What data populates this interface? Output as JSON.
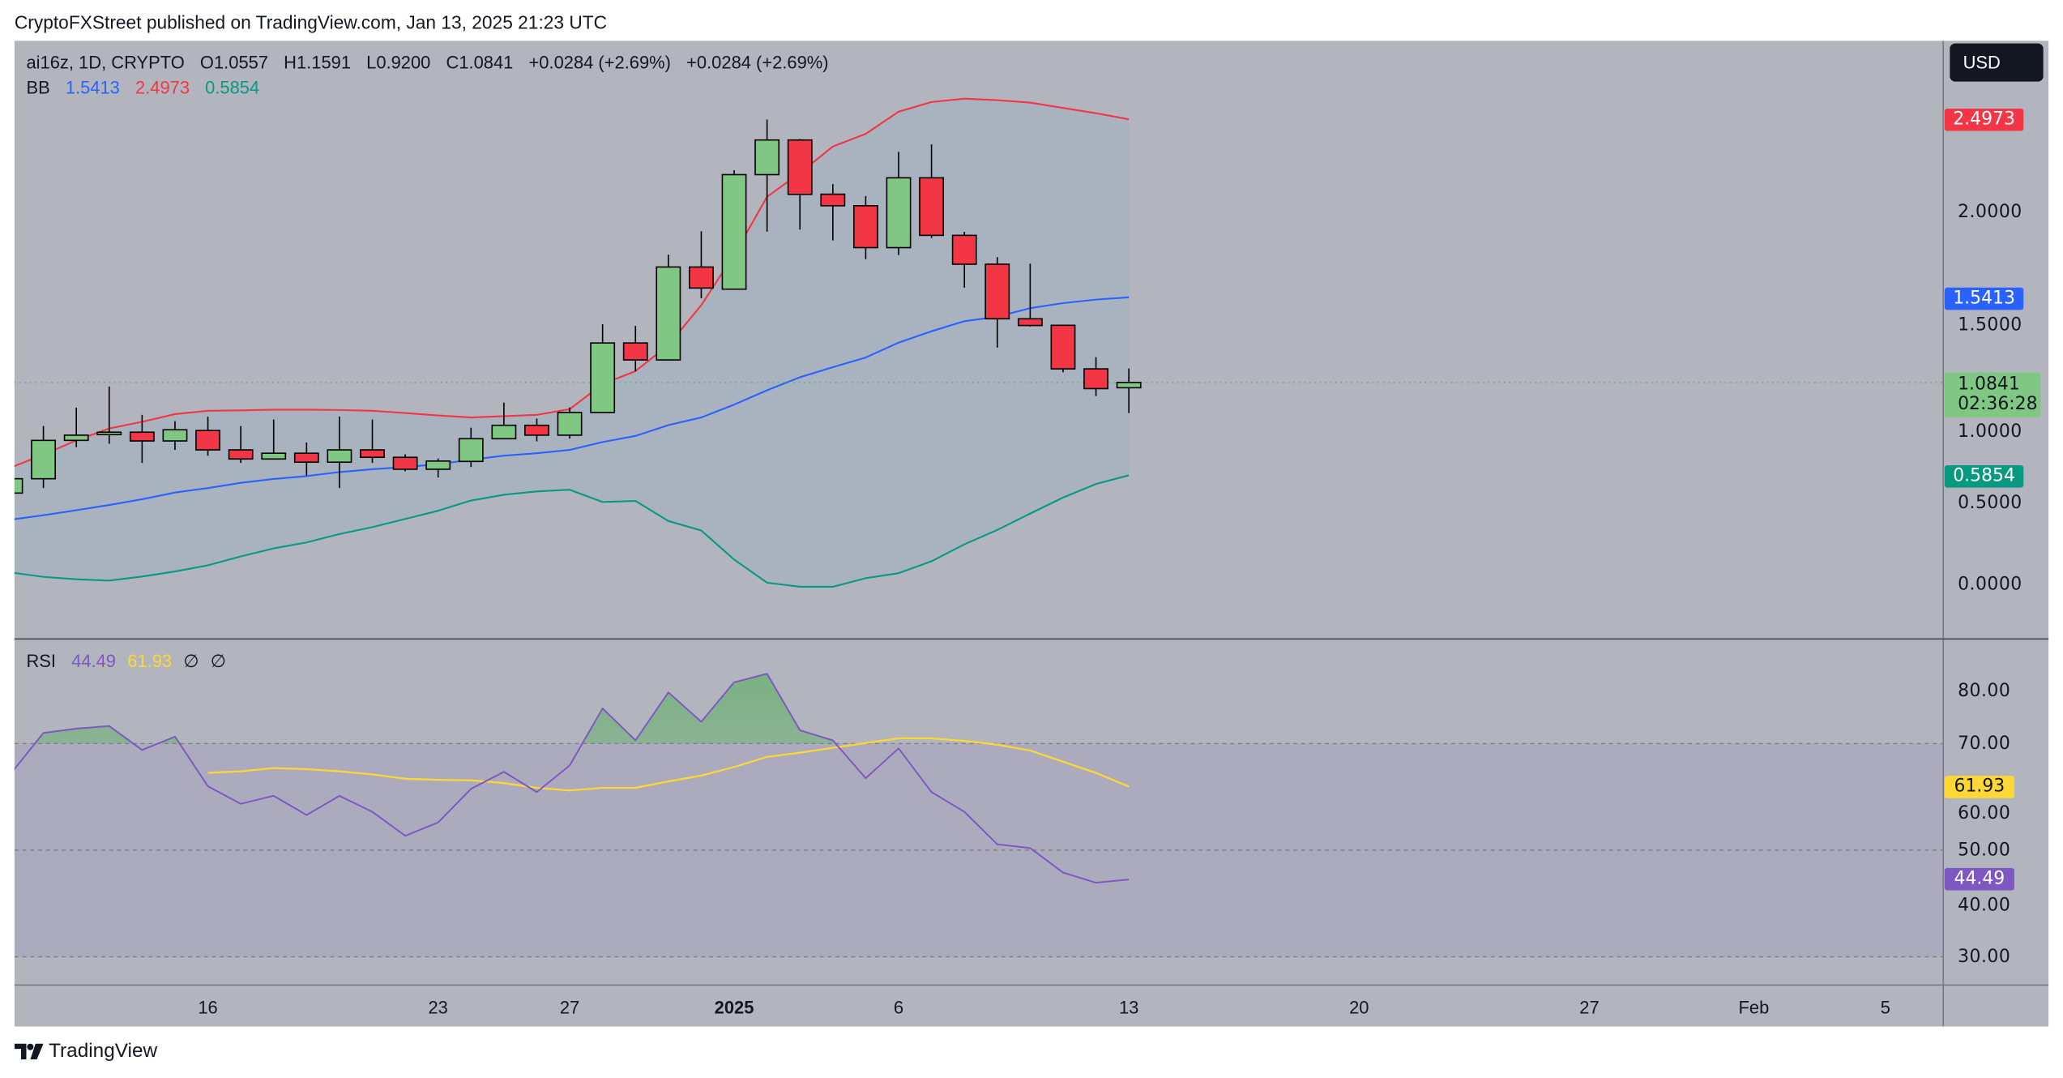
{
  "published": "CryptoFXStreet published on TradingView.com, Jan 13, 2025 21:23 UTC",
  "legend": {
    "symbol": "ai16z, 1D, CRYPTO",
    "open": "O1.0557",
    "high": "H1.1591",
    "low": "L0.9200",
    "close": "C1.0841",
    "change1": "+0.0284 (+2.69%)",
    "change2": "+0.0284 (+2.69%)",
    "bb_label": "BB",
    "bb_basis": "1.5413",
    "bb_upper": "2.4973",
    "bb_lower": "0.5854"
  },
  "rsi_legend": {
    "label": "RSI",
    "rsi": "44.49",
    "ma": "61.93",
    "sym1": "∅",
    "sym2": "∅"
  },
  "currency_button": "USD",
  "price_labels": {
    "upper": "2.4973",
    "basis": "1.5413",
    "current": "1.0841",
    "countdown": "02:36:28",
    "lower": "0.5854",
    "rsi_ma": "61.93",
    "rsi": "44.49"
  },
  "footer_brand": "TradingView",
  "colors": {
    "up": "#81c784",
    "down": "#f23645",
    "bb_upper": "#f23645",
    "bb_basis": "#2962ff",
    "bb_lower": "#089981",
    "rsi": "#7e57c2",
    "rsi_ma": "#fdd835",
    "background": "#b2b5be"
  },
  "chart_data": [
    {
      "type": "candlestick",
      "title": "ai16z, 1D, CRYPTO",
      "ylabel": "USD",
      "ylim": [
        -0.3,
        2.9
      ],
      "yticks": [
        "2.0000",
        "1.5000",
        "1.0000",
        "0.5000",
        "0.0000"
      ],
      "ytick_values": [
        2.0,
        1.5,
        1.0,
        0.5,
        0.0
      ],
      "xticks": [
        {
          "label": "16",
          "date": "Dec 16",
          "bold": false
        },
        {
          "label": "23",
          "date": "Dec 23",
          "bold": false
        },
        {
          "label": "27",
          "date": "Dec 27",
          "bold": false
        },
        {
          "label": "2025",
          "date": "Jan 1",
          "bold": true
        },
        {
          "label": "6",
          "date": "Jan 6",
          "bold": false
        },
        {
          "label": "13",
          "date": "Jan 13",
          "bold": false
        },
        {
          "label": "20",
          "date": "Jan 20",
          "bold": false
        },
        {
          "label": "27",
          "date": "Jan 27",
          "bold": false
        },
        {
          "label": "Feb",
          "date": "Feb 1",
          "bold": false
        },
        {
          "label": "5",
          "date": "Feb 5",
          "bold": false
        }
      ],
      "dates": [
        "Dec 10",
        "Dec 11",
        "Dec 12",
        "Dec 13",
        "Dec 14",
        "Dec 15",
        "Dec 16",
        "Dec 17",
        "Dec 18",
        "Dec 19",
        "Dec 20",
        "Dec 21",
        "Dec 22",
        "Dec 23",
        "Dec 24",
        "Dec 25",
        "Dec 26",
        "Dec 27",
        "Dec 28",
        "Dec 29",
        "Dec 30",
        "Dec 31",
        "Jan 1",
        "Jan 2",
        "Jan 3",
        "Jan 4",
        "Jan 5",
        "Jan 6",
        "Jan 7",
        "Jan 8",
        "Jan 9",
        "Jan 10",
        "Jan 11",
        "Jan 12",
        "Jan 13"
      ],
      "ohlc": [
        [
          0.49,
          0.58,
          0.47,
          0.567
        ],
        [
          0.567,
          0.85,
          0.517,
          0.773
        ],
        [
          0.773,
          0.949,
          0.737,
          0.801
        ],
        [
          0.804,
          1.062,
          0.755,
          0.817
        ],
        [
          0.817,
          0.91,
          0.652,
          0.77
        ],
        [
          0.77,
          0.876,
          0.722,
          0.83
        ],
        [
          0.826,
          0.901,
          0.691,
          0.722
        ],
        [
          0.722,
          0.85,
          0.652,
          0.673
        ],
        [
          0.673,
          0.885,
          0.673,
          0.704
        ],
        [
          0.704,
          0.762,
          0.585,
          0.656
        ],
        [
          0.656,
          0.901,
          0.517,
          0.722
        ],
        [
          0.722,
          0.885,
          0.652,
          0.682
        ],
        [
          0.682,
          0.698,
          0.607,
          0.618
        ],
        [
          0.618,
          0.676,
          0.574,
          0.662
        ],
        [
          0.66,
          0.841,
          0.63,
          0.782
        ],
        [
          0.782,
          0.976,
          0.782,
          0.854
        ],
        [
          0.854,
          0.89,
          0.768,
          0.801
        ],
        [
          0.801,
          0.95,
          0.783,
          0.923
        ],
        [
          0.923,
          1.397,
          0.923,
          1.296
        ],
        [
          1.296,
          1.388,
          1.144,
          1.205
        ],
        [
          1.205,
          1.77,
          1.205,
          1.704
        ],
        [
          1.704,
          1.896,
          1.536,
          1.591
        ],
        [
          1.585,
          2.224,
          1.585,
          2.2
        ],
        [
          2.2,
          2.496,
          1.894,
          2.386
        ],
        [
          2.386,
          2.392,
          1.905,
          2.094
        ],
        [
          2.095,
          2.149,
          1.847,
          2.033
        ],
        [
          2.033,
          2.085,
          1.746,
          1.808
        ],
        [
          1.808,
          2.322,
          1.768,
          2.183
        ],
        [
          2.183,
          2.362,
          1.86,
          1.874
        ],
        [
          1.874,
          1.893,
          1.593,
          1.719
        ],
        [
          1.719,
          1.757,
          1.271,
          1.426
        ],
        [
          1.426,
          1.722,
          1.384,
          1.39
        ],
        [
          1.391,
          1.395,
          1.139,
          1.157
        ],
        [
          1.157,
          1.22,
          1.011,
          1.051
        ],
        [
          1.0557,
          1.1591,
          0.92,
          1.0841
        ]
      ],
      "bb_upper": [
        0.627,
        0.696,
        0.773,
        0.837,
        0.873,
        0.914,
        0.932,
        0.934,
        0.938,
        0.938,
        0.936,
        0.932,
        0.92,
        0.907,
        0.896,
        0.903,
        0.91,
        0.941,
        1.075,
        1.145,
        1.285,
        1.499,
        1.77,
        2.081,
        2.209,
        2.351,
        2.419,
        2.538,
        2.59,
        2.608,
        2.6,
        2.587,
        2.558,
        2.53,
        2.4973
      ],
      "bb_basis": [
        0.347,
        0.371,
        0.398,
        0.426,
        0.457,
        0.493,
        0.517,
        0.545,
        0.566,
        0.581,
        0.603,
        0.618,
        0.63,
        0.645,
        0.669,
        0.691,
        0.704,
        0.722,
        0.764,
        0.797,
        0.855,
        0.896,
        0.965,
        1.042,
        1.112,
        1.166,
        1.218,
        1.298,
        1.359,
        1.413,
        1.437,
        1.483,
        1.51,
        1.529,
        1.5413
      ],
      "bb_lower": [
        0.064,
        0.04,
        0.027,
        0.02,
        0.042,
        0.069,
        0.102,
        0.15,
        0.193,
        0.225,
        0.27,
        0.307,
        0.351,
        0.395,
        0.45,
        0.481,
        0.499,
        0.508,
        0.442,
        0.448,
        0.34,
        0.289,
        0.133,
        0.009,
        -0.013,
        -0.013,
        0.033,
        0.06,
        0.124,
        0.215,
        0.292,
        0.38,
        0.466,
        0.539,
        0.5854
      ]
    },
    {
      "type": "line",
      "title": "RSI",
      "ylim": [
        25,
        89
      ],
      "yticks": [
        "80.00",
        "70.00",
        "60.00",
        "50.00",
        "40.00",
        "30.00"
      ],
      "ytick_values": [
        80,
        70,
        60,
        50,
        40,
        30
      ],
      "bands": [
        70,
        50,
        30
      ],
      "series": [
        {
          "name": "RSI",
          "values": [
            64.3,
            72.0,
            72.8,
            73.3,
            68.8,
            71.3,
            62.0,
            58.7,
            60.2,
            56.6,
            60.2,
            57.2,
            52.7,
            55.2,
            61.5,
            64.7,
            60.9,
            65.9,
            76.6,
            70.6,
            79.6,
            74.1,
            81.5,
            83.1,
            72.5,
            70.6,
            63.5,
            69.1,
            60.9,
            57.2,
            51.1,
            50.4,
            45.8,
            43.9,
            44.49
          ]
        },
        {
          "name": "RSI-based MA",
          "values": [
            null,
            null,
            null,
            null,
            null,
            null,
            64.5,
            64.8,
            65.4,
            65.2,
            64.8,
            64.2,
            63.4,
            63.2,
            63.1,
            62.6,
            61.7,
            61.2,
            61.7,
            61.7,
            62.9,
            64.0,
            65.6,
            67.5,
            68.3,
            69.2,
            70.1,
            71.0,
            71.0,
            70.5,
            69.8,
            68.7,
            66.6,
            64.5,
            61.93
          ]
        }
      ]
    }
  ]
}
